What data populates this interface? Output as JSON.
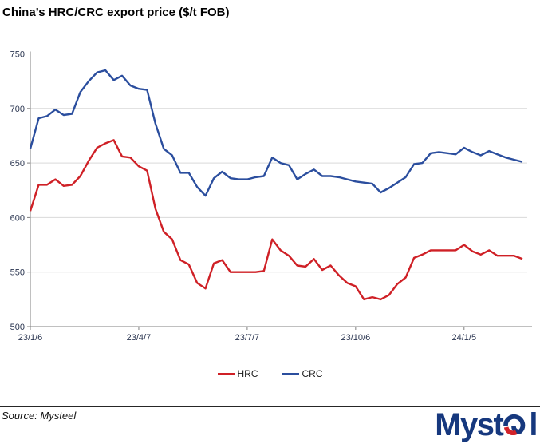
{
  "title": "China’s HRC/CRC export price ($/t FOB)",
  "chart_data": {
    "type": "line",
    "x": [
      "23/1/6",
      "23/1/13",
      "23/1/20",
      "23/1/27",
      "23/2/3",
      "23/2/10",
      "23/2/17",
      "23/2/24",
      "23/3/3",
      "23/3/10",
      "23/3/17",
      "23/3/24",
      "23/3/31",
      "23/4/7",
      "23/4/14",
      "23/4/21",
      "23/4/28",
      "23/5/5",
      "23/5/12",
      "23/5/19",
      "23/5/26",
      "23/6/2",
      "23/6/9",
      "23/6/16",
      "23/6/23",
      "23/6/30",
      "23/7/7",
      "23/7/14",
      "23/7/21",
      "23/7/28",
      "23/8/4",
      "23/8/11",
      "23/8/18",
      "23/8/25",
      "23/9/1",
      "23/9/8",
      "23/9/15",
      "23/9/22",
      "23/9/29",
      "23/10/6",
      "23/10/13",
      "23/10/20",
      "23/10/27",
      "23/11/3",
      "23/11/10",
      "23/11/17",
      "23/11/24",
      "23/12/1",
      "23/12/8",
      "23/12/15",
      "23/12/22",
      "23/12/29",
      "24/1/5",
      "24/1/12",
      "24/1/19",
      "24/1/26",
      "24/2/2",
      "24/2/9",
      "24/2/16",
      "24/2/23"
    ],
    "series": [
      {
        "name": "HRC",
        "color": "#cf2026",
        "values": [
          606,
          630,
          630,
          635,
          629,
          630,
          638,
          652,
          664,
          668,
          671,
          656,
          655,
          647,
          643,
          608,
          587,
          580,
          561,
          557,
          540,
          535,
          558,
          561,
          550,
          550,
          550,
          550,
          551,
          580,
          570,
          565,
          556,
          555,
          562,
          552,
          556,
          547,
          540,
          537,
          525,
          527,
          525,
          529,
          539,
          545,
          563,
          566,
          570,
          570,
          570,
          570,
          575,
          569,
          566,
          570,
          565,
          565,
          565,
          562
        ]
      },
      {
        "name": "CRC",
        "color": "#2b4e9e",
        "values": [
          663,
          691,
          693,
          699,
          694,
          695,
          715,
          725,
          733,
          735,
          726,
          730,
          721,
          718,
          717,
          686,
          663,
          657,
          641,
          641,
          628,
          620,
          636,
          642,
          636,
          635,
          635,
          637,
          638,
          655,
          650,
          648,
          635,
          640,
          644,
          638,
          638,
          637,
          635,
          633,
          632,
          631,
          623,
          627,
          632,
          637,
          649,
          650,
          659,
          660,
          659,
          658,
          664,
          660,
          657,
          661,
          658,
          655,
          653,
          651
        ]
      }
    ],
    "ylim": [
      500,
      750
    ],
    "y_ticks": [
      500,
      550,
      600,
      650,
      700,
      750
    ],
    "x_ticks": [
      {
        "index": 0,
        "label": "23/1/6"
      },
      {
        "index": 13,
        "label": "23/4/7"
      },
      {
        "index": 26,
        "label": "23/7/7"
      },
      {
        "index": 39,
        "label": "23/10/6"
      },
      {
        "index": 52,
        "label": "24/1/5"
      }
    ],
    "grid": "horizontal",
    "legend_position": "bottom"
  },
  "footer": {
    "source": "Source: Mysteel",
    "logo": {
      "text": "Mysteel",
      "prefix": "Myst",
      "suffix": "l",
      "navy": "#16387e",
      "red": "#d2232a"
    }
  },
  "colors": {
    "grid": "#d9d9d9",
    "axis": "#808080",
    "tick_label": "#2a3550",
    "legend_text": "#1a1a1a"
  }
}
